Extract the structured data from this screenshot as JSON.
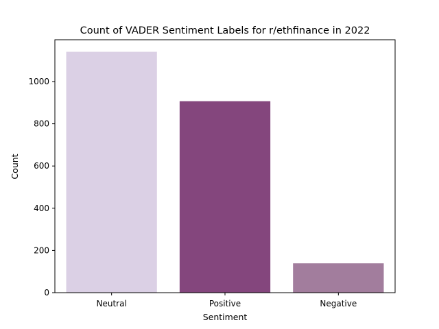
{
  "chart_data": {
    "type": "bar",
    "title": "Count of VADER Sentiment Labels for r/ethfinance in 2022",
    "xlabel": "Sentiment",
    "ylabel": "Count",
    "categories": [
      "Neutral",
      "Positive",
      "Negative"
    ],
    "values": [
      1141,
      907,
      139
    ],
    "colors": [
      "#dbd0e5",
      "#84467d",
      "#a27d9d"
    ],
    "ylim": [
      0,
      1198
    ],
    "yticks": [
      0,
      200,
      400,
      600,
      800,
      1000
    ],
    "grid": false,
    "legend": "none"
  }
}
